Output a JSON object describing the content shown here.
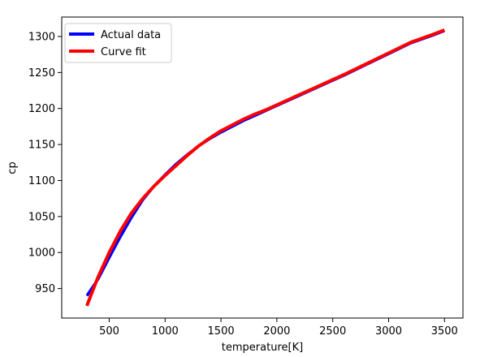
{
  "chart_data": {
    "type": "line",
    "title": "",
    "xlabel": "temperature[K]",
    "ylabel": "cp",
    "xlim": [
      75,
      3665
    ],
    "ylim": [
      909,
      1327
    ],
    "xticks": [
      500,
      1000,
      1500,
      2000,
      2500,
      3000,
      3500
    ],
    "yticks": [
      950,
      1000,
      1050,
      1100,
      1150,
      1200,
      1250,
      1300
    ],
    "grid": false,
    "legend_position": "upper-left",
    "series": [
      {
        "name": "Actual data",
        "color": "#0000ff",
        "x": [
          300,
          400,
          500,
          600,
          700,
          800,
          900,
          1000,
          1100,
          1200,
          1300,
          1400,
          1500,
          1600,
          1700,
          1800,
          1900,
          2000,
          2200,
          2400,
          2600,
          2800,
          3000,
          3200,
          3400,
          3500
        ],
        "y": [
          940,
          963,
          993,
          1022,
          1049,
          1073,
          1092,
          1108,
          1123,
          1136,
          1148,
          1158,
          1167,
          1175,
          1183,
          1190,
          1197,
          1204,
          1218,
          1232,
          1246,
          1261,
          1276,
          1291,
          1302,
          1308
        ]
      },
      {
        "name": "Curve fit",
        "color": "#ff0000",
        "x": [
          300,
          400,
          500,
          600,
          700,
          800,
          900,
          1000,
          1100,
          1200,
          1300,
          1400,
          1500,
          1600,
          1700,
          1800,
          1900,
          2000,
          2200,
          2400,
          2600,
          2800,
          3000,
          3200,
          3400,
          3500
        ],
        "y": [
          926,
          966,
          1000,
          1030,
          1055,
          1075,
          1092,
          1107,
          1121,
          1135,
          1148,
          1159,
          1169,
          1177,
          1185,
          1192,
          1198,
          1205,
          1219,
          1233,
          1247,
          1262,
          1277,
          1292,
          1303,
          1309
        ]
      }
    ]
  }
}
